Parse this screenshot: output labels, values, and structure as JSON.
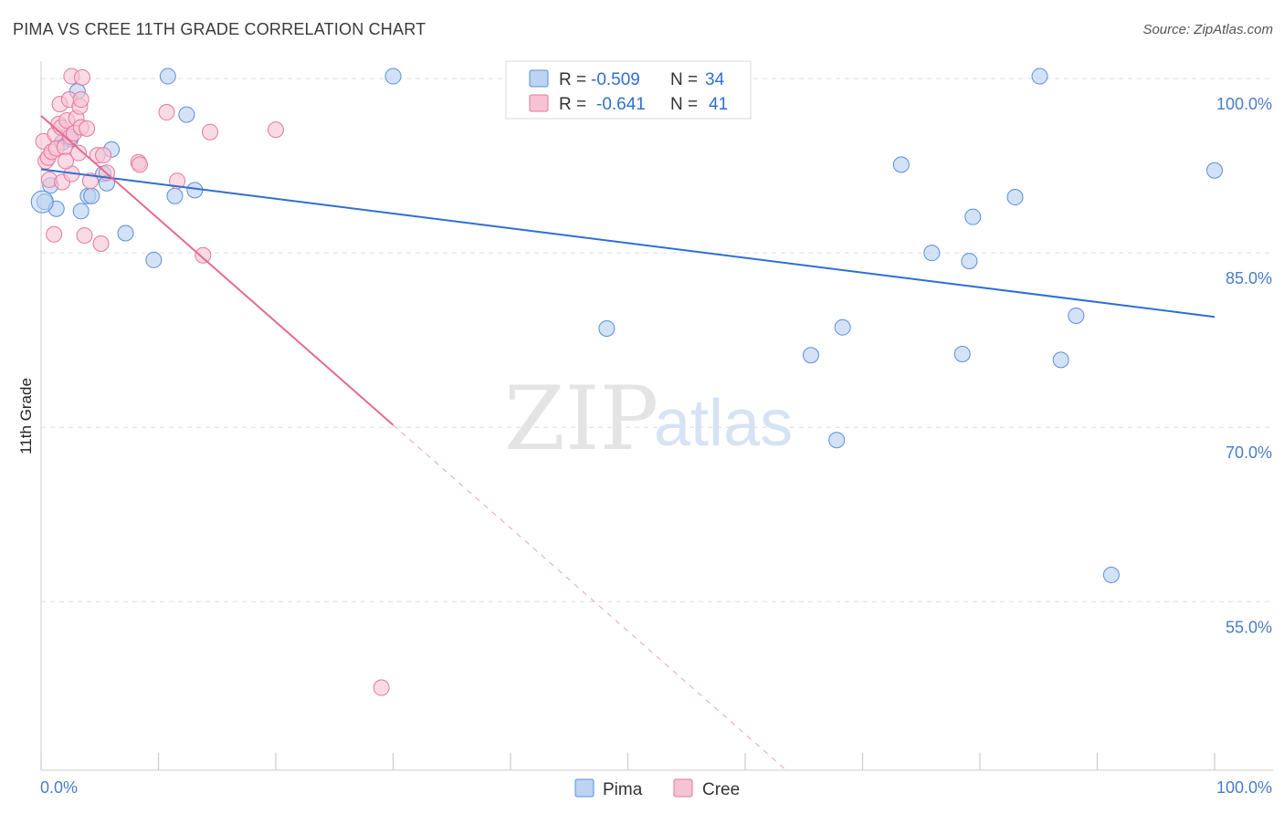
{
  "title": "PIMA VS CREE 11TH GRADE CORRELATION CHART",
  "source": "Source: ZipAtlas.com",
  "watermark": {
    "zip": "ZIP",
    "atlas": "atlas"
  },
  "colors": {
    "pima": "#5b8fd6",
    "pima_fill": "#bcd3f2",
    "cree": "#e8769c",
    "cree_fill": "#f6c3d4",
    "axis_text": "#4a7cc9"
  },
  "legend": {
    "r_label": "R =",
    "n_label": "N =",
    "pima": {
      "r": "-0.509",
      "n": "34"
    },
    "cree": {
      "r": "-0.641",
      "n": "41"
    }
  },
  "chart_data": {
    "type": "scatter",
    "title": "PIMA VS CREE 11TH GRADE CORRELATION CHART",
    "xlabel": "",
    "ylabel": "11th Grade",
    "xlim": [
      0,
      100
    ],
    "ylim": [
      40.5,
      101.5
    ],
    "x_tick_labels": [
      "0.0%",
      "100.0%"
    ],
    "y_ticks": [
      100,
      85,
      70,
      55
    ],
    "y_tick_labels": [
      "100.0%",
      "85.0%",
      "70.0%",
      "55.0%"
    ],
    "legend_position": "bottom-center",
    "series": [
      {
        "name": "Pima",
        "r": -0.509,
        "n": 34,
        "trend": {
          "x0": 0,
          "y0": 92.2,
          "x1": 100,
          "y1": 79.5
        },
        "points": [
          [
            0.3,
            89.4
          ],
          [
            0.8,
            90.8
          ],
          [
            1.3,
            88.8
          ],
          [
            1.8,
            94.5
          ],
          [
            2.5,
            94.8
          ],
          [
            3.1,
            98.9
          ],
          [
            3.4,
            88.6
          ],
          [
            4.0,
            89.9
          ],
          [
            4.3,
            89.9
          ],
          [
            5.3,
            91.8
          ],
          [
            5.6,
            91.0
          ],
          [
            6.0,
            93.9
          ],
          [
            7.2,
            86.7
          ],
          [
            9.6,
            84.4
          ],
          [
            10.8,
            100.2
          ],
          [
            11.4,
            89.9
          ],
          [
            12.4,
            96.9
          ],
          [
            13.1,
            90.4
          ],
          [
            30.0,
            100.2
          ],
          [
            48.2,
            78.5
          ],
          [
            65.6,
            76.2
          ],
          [
            67.8,
            68.9
          ],
          [
            68.3,
            78.6
          ],
          [
            73.3,
            92.6
          ],
          [
            75.9,
            85.0
          ],
          [
            78.5,
            76.3
          ],
          [
            79.1,
            84.3
          ],
          [
            79.4,
            88.1
          ],
          [
            83.0,
            89.8
          ],
          [
            85.1,
            100.2
          ],
          [
            86.9,
            75.8
          ],
          [
            88.2,
            79.6
          ],
          [
            91.2,
            57.3
          ],
          [
            100.0,
            92.1
          ]
        ]
      },
      {
        "name": "Cree",
        "r": -0.641,
        "n": 41,
        "trend": {
          "x0": 0,
          "y0": 96.8,
          "x1": 30,
          "y1": 70.2,
          "dash_x1": 63.5,
          "dash_y1": 40.5
        },
        "points": [
          [
            0.2,
            94.6
          ],
          [
            0.4,
            92.9
          ],
          [
            0.6,
            93.2
          ],
          [
            0.7,
            91.3
          ],
          [
            0.9,
            93.7
          ],
          [
            1.1,
            86.6
          ],
          [
            1.2,
            95.2
          ],
          [
            1.3,
            94.0
          ],
          [
            1.5,
            96.1
          ],
          [
            1.6,
            97.8
          ],
          [
            1.7,
            95.8
          ],
          [
            1.8,
            91.1
          ],
          [
            2.0,
            94.1
          ],
          [
            2.2,
            96.4
          ],
          [
            2.4,
            98.2
          ],
          [
            2.5,
            95.0
          ],
          [
            2.6,
            91.8
          ],
          [
            2.6,
            100.2
          ],
          [
            2.8,
            95.3
          ],
          [
            3.0,
            96.6
          ],
          [
            3.2,
            93.6
          ],
          [
            3.3,
            97.6
          ],
          [
            3.4,
            98.2
          ],
          [
            3.4,
            95.8
          ],
          [
            3.5,
            100.1
          ],
          [
            3.7,
            86.5
          ],
          [
            3.9,
            95.7
          ],
          [
            4.2,
            91.2
          ],
          [
            4.8,
            93.4
          ],
          [
            5.1,
            85.8
          ],
          [
            5.3,
            93.4
          ],
          [
            5.6,
            91.9
          ],
          [
            8.3,
            92.8
          ],
          [
            8.4,
            92.6
          ],
          [
            10.7,
            97.1
          ],
          [
            11.6,
            91.2
          ],
          [
            13.8,
            84.8
          ],
          [
            14.4,
            95.4
          ],
          [
            20.0,
            95.6
          ],
          [
            29.0,
            47.6
          ],
          [
            2.1,
            92.9
          ]
        ]
      }
    ]
  }
}
